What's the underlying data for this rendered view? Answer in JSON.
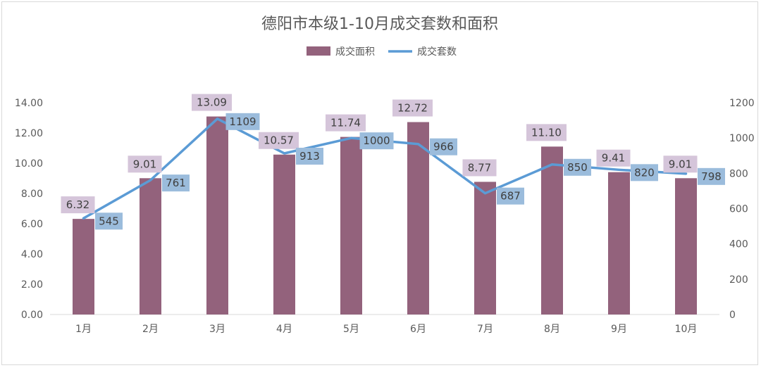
{
  "chart_data": {
    "type": "bar",
    "title": "德阳市本级1-10月成交套数和面积",
    "legend_position": "top-center",
    "grid": false,
    "categories": [
      "1月",
      "2月",
      "3月",
      "4月",
      "5月",
      "6月",
      "7月",
      "8月",
      "9月",
      "10月"
    ],
    "y_left": {
      "min": 0,
      "max": 14,
      "step": 2,
      "decimals": 2
    },
    "y_right": {
      "min": 0,
      "max": 1200,
      "step": 200,
      "decimals": 0
    },
    "series": [
      {
        "name": "成交面积",
        "type": "bar",
        "axis": "left",
        "color": "#93627c",
        "label_bg": "#d5c5da",
        "values": [
          6.32,
          9.01,
          13.09,
          10.57,
          11.74,
          12.72,
          8.77,
          11.1,
          9.41,
          9.01
        ],
        "labels": [
          "6.32",
          "9.01",
          "13.09",
          "10.57",
          "11.74",
          "12.72",
          "8.77",
          "11.10",
          "9.41",
          "9.01"
        ]
      },
      {
        "name": "成交套数",
        "type": "line",
        "axis": "right",
        "color": "#5b9bd5",
        "label_bg": "#9bbcdc",
        "values": [
          545,
          761,
          1109,
          913,
          1000,
          966,
          687,
          850,
          820,
          798
        ],
        "labels": [
          "545",
          "761",
          "1109",
          "913",
          "1000",
          "966",
          "687",
          "850",
          "820",
          "798"
        ]
      }
    ]
  }
}
